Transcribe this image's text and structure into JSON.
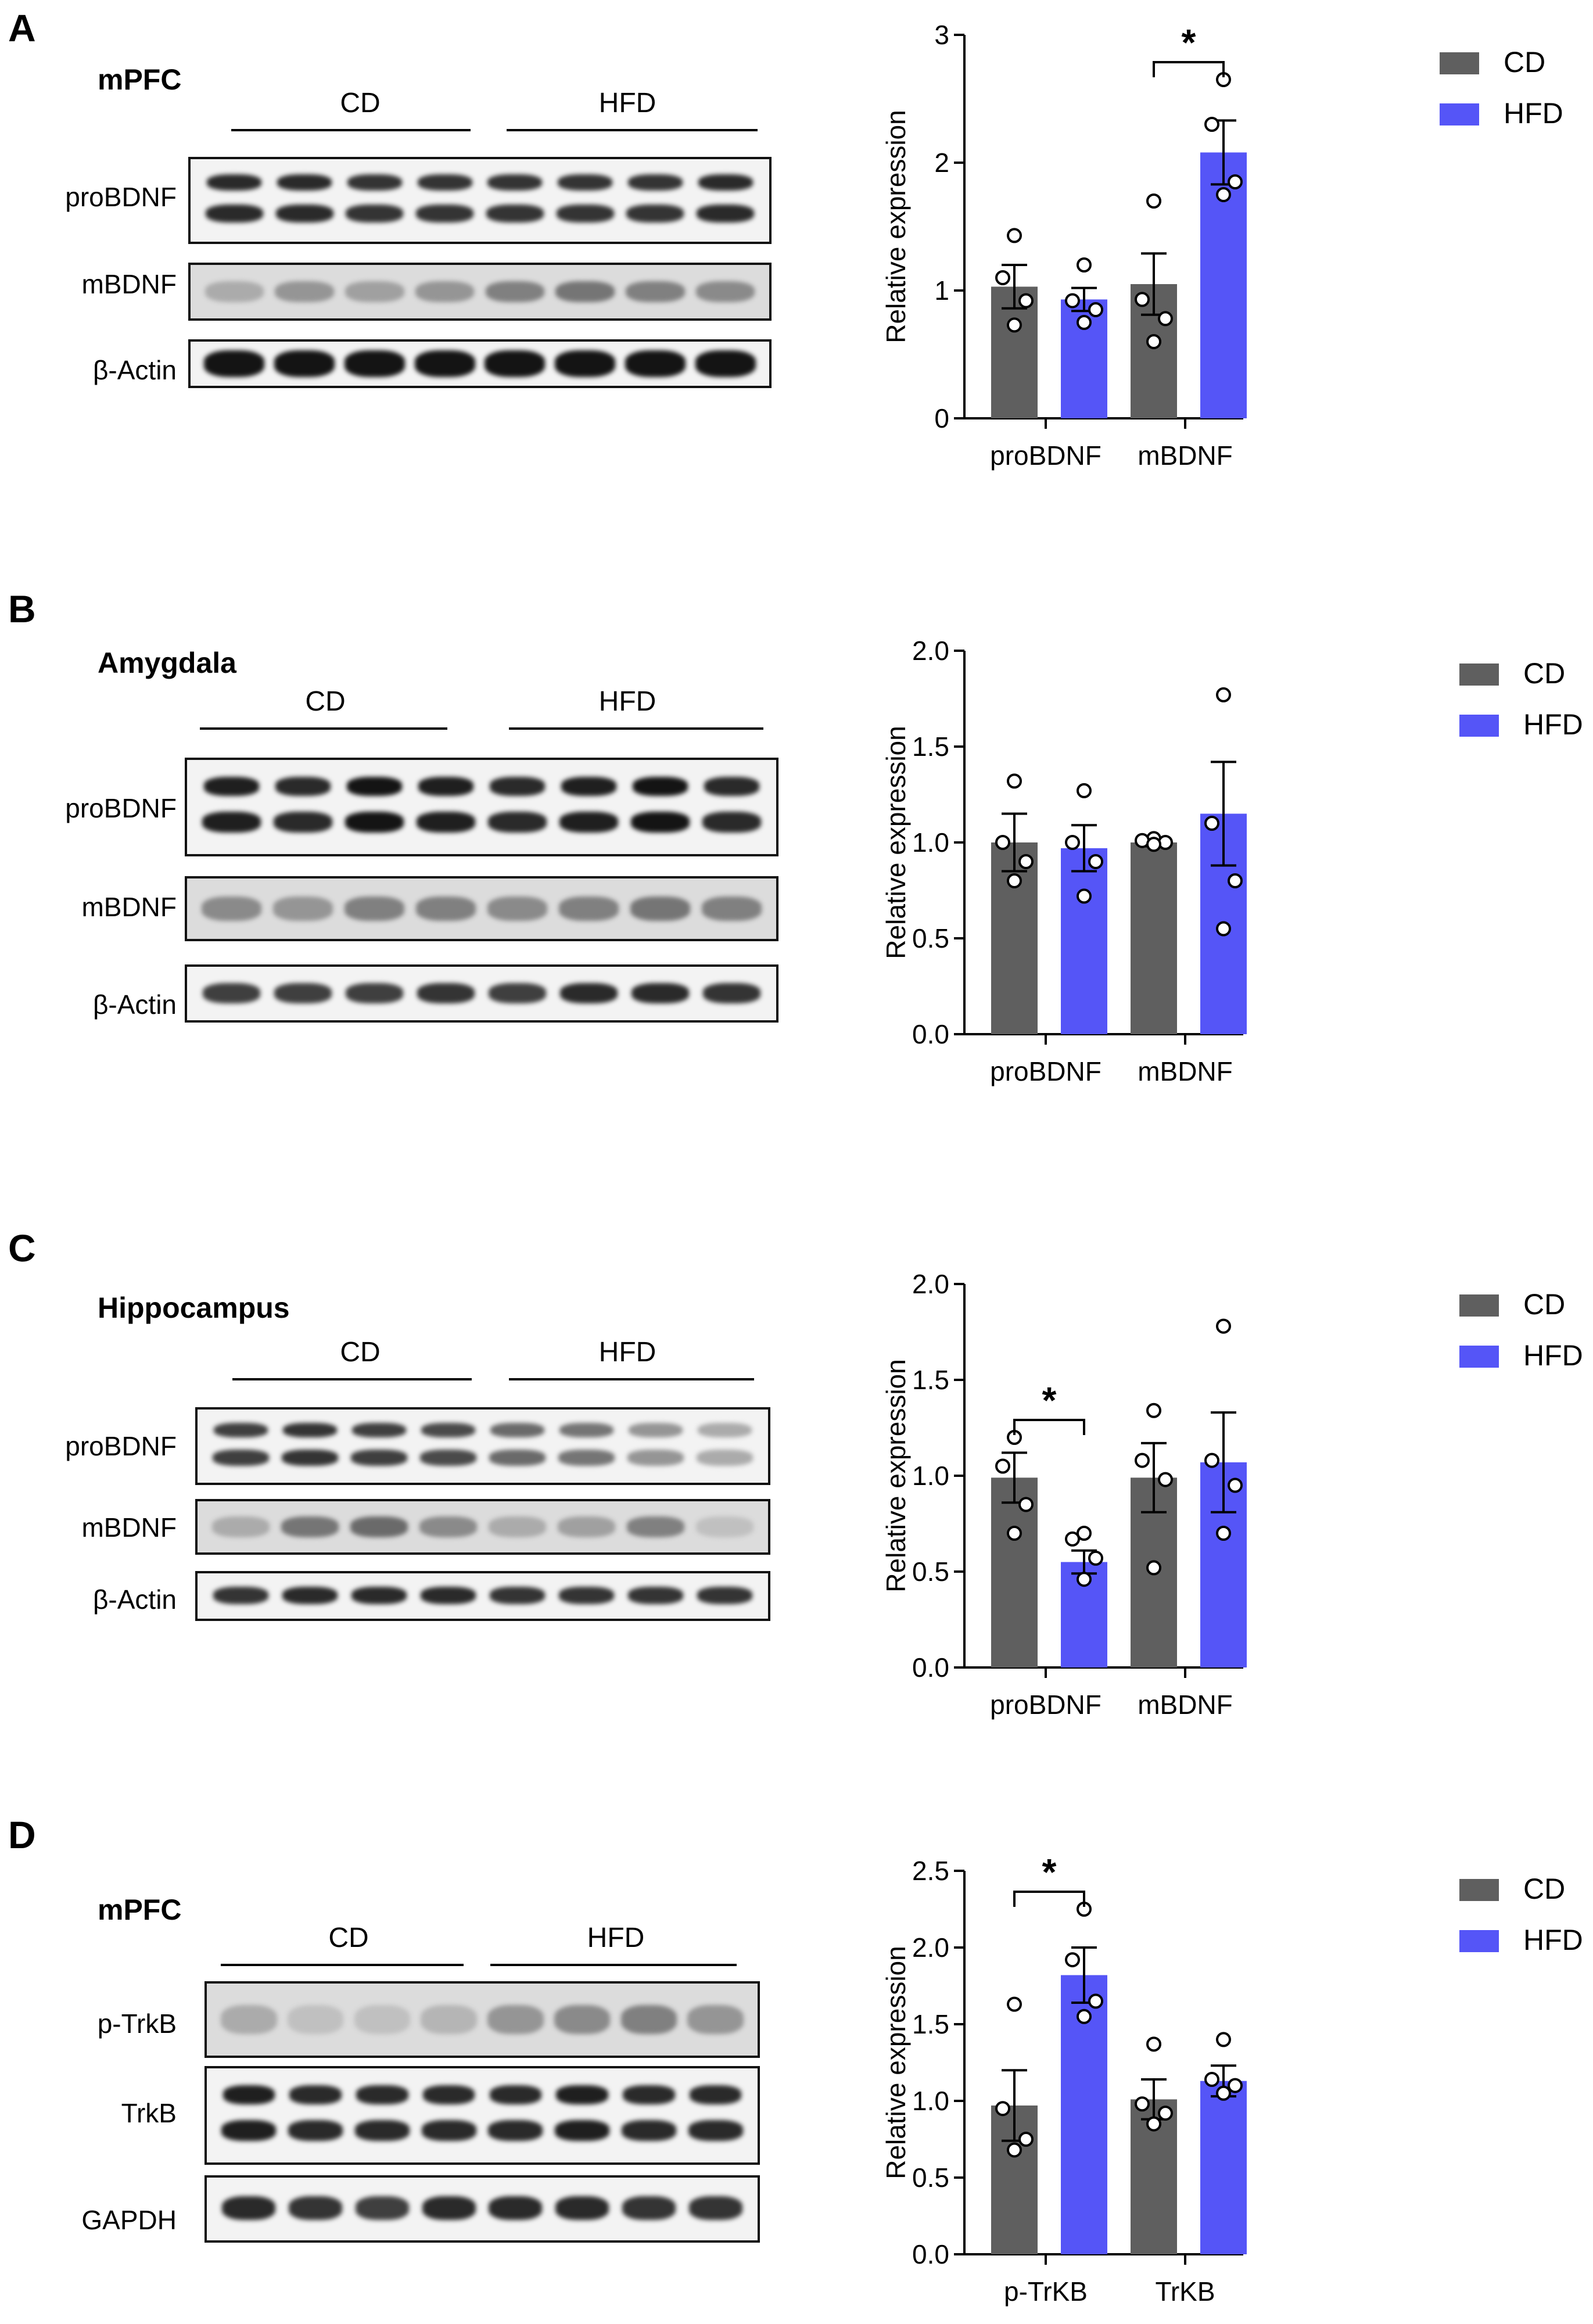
{
  "colors": {
    "cd": "#5f5f5f",
    "hfd": "#5555f7",
    "axis": "#000000"
  },
  "legend": {
    "cd": "CD",
    "hfd": "HFD"
  },
  "panels": [
    {
      "letter": "A",
      "region": "mPFC",
      "groups": [
        "CD",
        "HFD"
      ],
      "blots": [
        {
          "label": "proBDNF",
          "type": "double",
          "intensity": [
            0.9,
            0.9,
            0.85,
            0.85,
            0.85,
            0.85,
            0.85,
            0.9
          ]
        },
        {
          "label": "mBDNF",
          "type": "faint",
          "intensity": [
            0.3,
            0.4,
            0.35,
            0.4,
            0.5,
            0.55,
            0.5,
            0.45
          ]
        },
        {
          "label": "β-Actin",
          "type": "thick",
          "intensity": [
            1,
            1,
            1,
            1,
            1,
            1,
            1,
            1
          ]
        }
      ]
    },
    {
      "letter": "B",
      "region": "Amygdala",
      "groups": [
        "CD",
        "HFD"
      ],
      "blots": [
        {
          "label": "proBDNF",
          "type": "double",
          "intensity": [
            0.95,
            0.9,
            1,
            0.95,
            0.9,
            0.95,
            1,
            0.9
          ]
        },
        {
          "label": "mBDNF",
          "type": "faint",
          "intensity": [
            0.45,
            0.4,
            0.5,
            0.5,
            0.45,
            0.5,
            0.55,
            0.5
          ]
        },
        {
          "label": "β-Actin",
          "type": "single",
          "intensity": [
            0.8,
            0.8,
            0.8,
            0.85,
            0.8,
            0.9,
            0.9,
            0.85
          ]
        }
      ]
    },
    {
      "letter": "C",
      "region": "Hippocampus",
      "groups": [
        "CD",
        "HFD"
      ],
      "blots": [
        {
          "label": "proBDNF",
          "type": "double",
          "intensity": [
            0.8,
            0.85,
            0.8,
            0.75,
            0.6,
            0.55,
            0.4,
            0.3
          ]
        },
        {
          "label": "mBDNF",
          "type": "faint",
          "intensity": [
            0.3,
            0.55,
            0.6,
            0.45,
            0.3,
            0.35,
            0.5,
            0.2
          ]
        },
        {
          "label": "β-Actin",
          "type": "single",
          "intensity": [
            0.85,
            0.9,
            0.9,
            0.9,
            0.85,
            0.85,
            0.85,
            0.85
          ]
        }
      ]
    },
    {
      "letter": "D",
      "region": "mPFC",
      "groups": [
        "CD",
        "HFD"
      ],
      "blots": [
        {
          "label": "p-TrkB",
          "type": "faint",
          "intensity": [
            0.3,
            0.2,
            0.2,
            0.25,
            0.4,
            0.45,
            0.5,
            0.4
          ]
        },
        {
          "label": "TrkB",
          "type": "double",
          "intensity": [
            0.95,
            0.9,
            0.9,
            0.9,
            0.9,
            0.95,
            0.9,
            0.9
          ]
        },
        {
          "label": "GAPDH",
          "type": "single",
          "intensity": [
            0.9,
            0.85,
            0.8,
            0.9,
            0.9,
            0.9,
            0.85,
            0.85
          ]
        }
      ]
    }
  ],
  "chart_data": [
    {
      "type": "bar",
      "panel": "A",
      "ylabel": "Relative expression",
      "ylim": [
        0,
        3
      ],
      "yticks": [
        "0",
        "1",
        "2",
        "3"
      ],
      "categories": [
        "proBDNF",
        "mBDNF"
      ],
      "series": [
        {
          "name": "CD",
          "values": [
            1.03,
            1.05
          ],
          "sem": [
            0.17,
            0.24
          ],
          "points": [
            [
              1.43,
              1.1,
              0.92,
              0.73
            ],
            [
              1.7,
              0.93,
              0.78,
              0.6
            ]
          ]
        },
        {
          "name": "HFD",
          "values": [
            0.93,
            2.08
          ],
          "sem": [
            0.09,
            0.25
          ],
          "points": [
            [
              1.2,
              0.92,
              0.85,
              0.75
            ],
            [
              2.65,
              2.3,
              1.85,
              1.75
            ]
          ]
        }
      ],
      "significance": [
        {
          "category": 1,
          "label": "*"
        }
      ]
    },
    {
      "type": "bar",
      "panel": "B",
      "ylabel": "Relative expression",
      "ylim": [
        0,
        2
      ],
      "yticks": [
        "0.0",
        "0.5",
        "1.0",
        "1.5",
        "2.0"
      ],
      "categories": [
        "proBDNF",
        "mBDNF"
      ],
      "series": [
        {
          "name": "CD",
          "values": [
            1.0,
            1.0
          ],
          "sem": [
            0.15,
            0.02
          ],
          "points": [
            [
              1.32,
              1.0,
              0.9,
              0.8
            ],
            [
              1.02,
              1.01,
              1.0,
              0.99
            ]
          ]
        },
        {
          "name": "HFD",
          "values": [
            0.97,
            1.15
          ],
          "sem": [
            0.12,
            0.27
          ],
          "points": [
            [
              1.27,
              1.0,
              0.9,
              0.72
            ],
            [
              1.77,
              1.1,
              0.8,
              0.55
            ]
          ]
        }
      ],
      "significance": []
    },
    {
      "type": "bar",
      "panel": "C",
      "ylabel": "Relative expression",
      "ylim": [
        0,
        2
      ],
      "yticks": [
        "0.0",
        "0.5",
        "1.0",
        "1.5",
        "2.0"
      ],
      "categories": [
        "proBDNF",
        "mBDNF"
      ],
      "series": [
        {
          "name": "CD",
          "values": [
            0.99,
            0.99
          ],
          "sem": [
            0.13,
            0.18
          ],
          "points": [
            [
              1.2,
              1.05,
              0.85,
              0.7
            ],
            [
              1.34,
              1.08,
              0.98,
              0.52
            ]
          ]
        },
        {
          "name": "HFD",
          "values": [
            0.55,
            1.07
          ],
          "sem": [
            0.06,
            0.26
          ],
          "points": [
            [
              0.7,
              0.67,
              0.57,
              0.46
            ],
            [
              1.78,
              1.08,
              0.95,
              0.7
            ]
          ]
        }
      ],
      "significance": [
        {
          "category": 0,
          "label": "*"
        }
      ]
    },
    {
      "type": "bar",
      "panel": "D",
      "ylabel": "Relative expression",
      "ylim": [
        0,
        2.5
      ],
      "yticks": [
        "0.0",
        "0.5",
        "1.0",
        "1.5",
        "2.0",
        "2.5"
      ],
      "categories": [
        "p-TrKB",
        "TrKB"
      ],
      "series": [
        {
          "name": "CD",
          "values": [
            0.97,
            1.01
          ],
          "sem": [
            0.23,
            0.13
          ],
          "points": [
            [
              1.63,
              0.95,
              0.75,
              0.68
            ],
            [
              1.37,
              0.98,
              0.92,
              0.85
            ]
          ]
        },
        {
          "name": "HFD",
          "values": [
            1.82,
            1.13
          ],
          "sem": [
            0.18,
            0.1
          ],
          "points": [
            [
              2.25,
              1.92,
              1.65,
              1.55
            ],
            [
              1.4,
              1.14,
              1.1,
              1.05
            ]
          ]
        }
      ],
      "significance": [
        {
          "category": 0,
          "label": "*"
        }
      ]
    }
  ]
}
